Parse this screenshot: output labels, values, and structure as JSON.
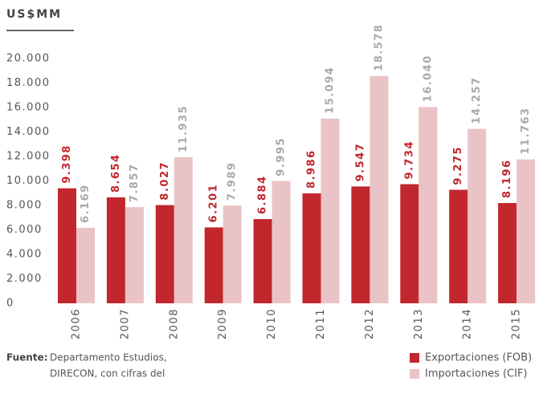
{
  "chart_data": {
    "type": "bar",
    "ylabel": "US$MM",
    "categories": [
      "2006",
      "2007",
      "2008",
      "2009",
      "2010",
      "2011",
      "2012",
      "2013",
      "2014",
      "2015"
    ],
    "series": [
      {
        "name": "Exportaciones (FOB)",
        "color": "#c1272d",
        "values": [
          9398,
          8654,
          8027,
          6201,
          6884,
          8986,
          9547,
          9734,
          9275,
          8196
        ],
        "value_labels": [
          "9.398",
          "8.654",
          "8.027",
          "6.201",
          "6.884",
          "8.986",
          "9.547",
          "9.734",
          "9.275",
          "8.196"
        ]
      },
      {
        "name": "Importaciones (CIF)",
        "color": "#e9c3c6",
        "values": [
          6169,
          7857,
          11935,
          7989,
          9995,
          15094,
          18578,
          16040,
          14257,
          11763
        ],
        "value_labels": [
          "6.169",
          "7.857",
          "11.935",
          "7.989",
          "9.995",
          "15.094",
          "18.578",
          "16.040",
          "14.257",
          "11.763"
        ]
      }
    ],
    "ylim": [
      0,
      20000
    ],
    "yticks": [
      0,
      {
        "value": 2000,
        "label": "2.000"
      },
      {
        "value": 4000,
        "label": "4.000"
      },
      {
        "value": 6000,
        "label": "6.000"
      },
      {
        "value": 8000,
        "label": "8.000"
      },
      {
        "value": 10000,
        "label": "10.000"
      },
      {
        "value": 12000,
        "label": "12.000"
      },
      {
        "value": 14000,
        "label": "14.000"
      },
      {
        "value": 16000,
        "label": "16.000"
      },
      {
        "value": 18000,
        "label": "18.000"
      },
      {
        "value": 20000,
        "label": "20.000"
      }
    ],
    "grid": false,
    "source_label": "Fuente:",
    "source_lines": [
      "Departamento Estudios,",
      "DIRECON, con cifras del"
    ]
  }
}
